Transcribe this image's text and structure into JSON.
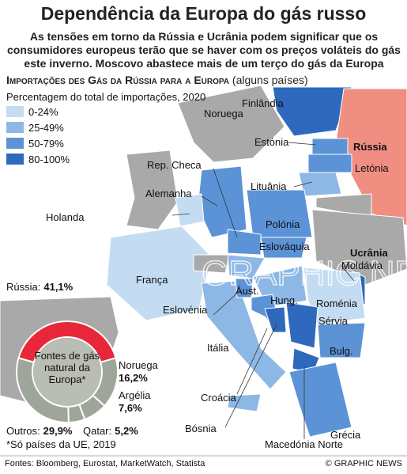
{
  "header": {
    "title": "Dependência da Europa do gás russo",
    "subtitle": "As tensões em torno da Rússia e Ucrânia podem significar que os consumidores europeus terão que se haver com os preços voláteis do gás este inverno. Moscovo abastece mais de um terço do gás da Europa"
  },
  "section": {
    "title": "Importações des Gás da Rússia para a Europa",
    "note": "(alguns países)"
  },
  "legend": {
    "title": "Percentagem do total de importações, 2020",
    "items": [
      {
        "label": "0-24%",
        "color": "#c4dcf2"
      },
      {
        "label": "25-49%",
        "color": "#8db8e5"
      },
      {
        "label": "50-79%",
        "color": "#5b93d6"
      },
      {
        "label": "80-100%",
        "color": "#2e69bd"
      }
    ]
  },
  "countries": [
    "Finlândia",
    "Noruega",
    "Rússia",
    "Estónia",
    "Letónia",
    "Rep. Checa",
    "Lituânia",
    "Alemanha",
    "Holanda",
    "Polónia",
    "Eslováquia",
    "Ucrânia",
    "Moldávia",
    "França",
    "Áust.",
    "Hung.",
    "Roménia",
    "Eslovénia",
    "Sérvia",
    "Itália",
    "Bulg.",
    "Croácia",
    "Bósnia",
    "Macedónia Norte",
    "Grécia"
  ],
  "watermark": "GRAPHIC NEWS",
  "chart_data": {
    "type": "donut",
    "center_label": "Fontes de gás natural da Europa*",
    "categories": [
      "Rússia:",
      "Noruega",
      "Argélia",
      "Qatar:",
      "Outros:"
    ],
    "values": [
      41.1,
      16.2,
      7.6,
      5.2,
      29.9
    ],
    "value_labels": [
      "41,1%",
      "16,2%",
      "7,6%",
      "5,2%",
      "29,9%"
    ],
    "colors": [
      "#e8283a",
      "#9ea69c",
      "#9ea69c",
      "#9ea69c",
      "#9ea69c"
    ]
  },
  "footnote": "*Só países da UE, 2019",
  "sources": "Fontes: Bloomberg, Eurostat, MarketWatch, Statista",
  "credit": "© GRAPHIC NEWS"
}
